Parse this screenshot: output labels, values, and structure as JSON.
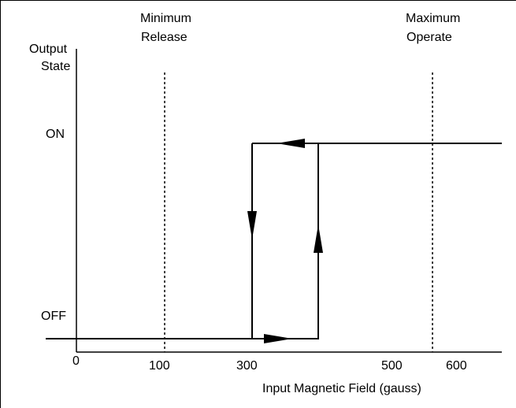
{
  "y_axis": {
    "title_line1": "Output",
    "title_line2": "State",
    "on_label": "ON",
    "off_label": "OFF"
  },
  "x_axis": {
    "title": "Input Magnetic Field (gauss)",
    "ticks": [
      "0",
      "100",
      "300",
      "500",
      "600"
    ]
  },
  "markers": {
    "min_release_line1": "Minimum",
    "min_release_line2": "Release",
    "max_operate_line1": "Maximum",
    "max_operate_line2": "Operate"
  },
  "colors": {
    "line": "#000000",
    "background": "#ffffff"
  }
}
